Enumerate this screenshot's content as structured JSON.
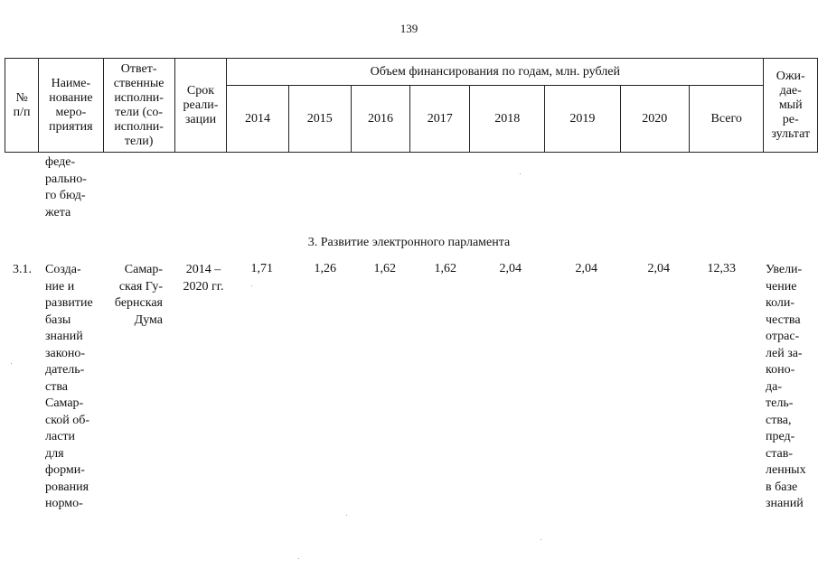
{
  "page_number": "139",
  "header": {
    "col_number": "№\nп/п",
    "col_name": "Наиме-\nнование\nмеро-\nприятия",
    "col_responsible": "Ответ-\nственные\nисполни-\nтели (со-\nисполни-\nтели)",
    "col_term": "Срок\nреали-\nзации",
    "col_funding": "Объем финансирования по годам, млн. рублей",
    "years": [
      "2014",
      "2015",
      "2016",
      "2017",
      "2018",
      "2019",
      "2020",
      "Всего"
    ],
    "col_result": "Ожи-\nдае-\nмый\nре-\nзультат"
  },
  "continuation_text": "феде-\nрально-\nго бюд-\nжета",
  "section_title": "3. Развитие электронного парламента",
  "row": {
    "number": "3.1.",
    "name": "Созда-\nние и\nразвитие\nбазы\nзнаний\nзаконо-\nдатель-\nства\nСамар-\nской об-\nласти\nдля\nформи-\nрования\nнормо-",
    "responsible": "Самар-\nская Гу-\nбернская\nДума",
    "term": "2014 –\n2020 гг.",
    "values": [
      "1,71",
      "1,26",
      "1,62",
      "1,62",
      "2,04",
      "2,04",
      "2,04",
      "12,33"
    ],
    "result": "Увели-\nчение\nколи-\nчества\nотрас-\nлей за-\nконо-\nда-\nтель-\nства,\nпред-\nстав-\nленных\nв базе\nзнаний"
  }
}
